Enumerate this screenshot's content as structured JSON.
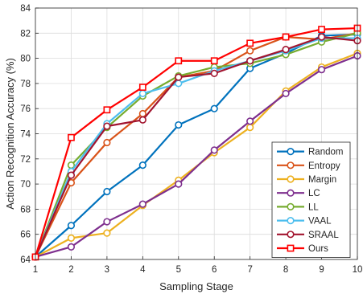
{
  "chart_data": {
    "type": "line",
    "title": "",
    "xlabel": "Sampling Stage",
    "ylabel": "Action Recognition Accuracy (%)",
    "x": [
      1,
      2,
      3,
      4,
      5,
      6,
      7,
      8,
      9,
      10
    ],
    "xlim": [
      1,
      10
    ],
    "ylim": [
      64,
      84
    ],
    "xticks": [
      "1",
      "2",
      "3",
      "4",
      "5",
      "6",
      "7",
      "8",
      "9",
      "10"
    ],
    "yticks": [
      "64",
      "66",
      "68",
      "70",
      "72",
      "74",
      "76",
      "78",
      "80",
      "82",
      "84"
    ],
    "grid": true,
    "legend_position": "bottom-right",
    "series": [
      {
        "name": "Random",
        "color": "#0072BD",
        "marker": "circle",
        "values": [
          64.2,
          66.7,
          69.4,
          71.5,
          74.7,
          76.0,
          79.2,
          80.4,
          81.8,
          81.9
        ]
      },
      {
        "name": "Entropy",
        "color": "#D95319",
        "marker": "circle",
        "values": [
          64.2,
          70.1,
          73.3,
          75.6,
          78.5,
          79.0,
          80.6,
          81.7,
          81.5,
          82.0
        ]
      },
      {
        "name": "Margin",
        "color": "#EDB120",
        "marker": "circle",
        "values": [
          64.2,
          65.7,
          66.1,
          68.3,
          70.3,
          72.5,
          74.5,
          77.4,
          79.3,
          80.4
        ]
      },
      {
        "name": "LC",
        "color": "#7E2F8E",
        "marker": "circle",
        "values": [
          64.2,
          65.0,
          67.0,
          68.4,
          70.0,
          72.7,
          75.0,
          77.2,
          79.1,
          80.2
        ]
      },
      {
        "name": "LL",
        "color": "#77AC30",
        "marker": "circle",
        "values": [
          64.2,
          71.5,
          74.5,
          77.0,
          78.6,
          79.3,
          79.6,
          80.3,
          81.3,
          82.0
        ]
      },
      {
        "name": "VAAL",
        "color": "#4DBEEE",
        "marker": "circle",
        "values": [
          64.2,
          71.0,
          74.8,
          77.2,
          78.0,
          79.0,
          79.8,
          80.6,
          81.6,
          81.6
        ]
      },
      {
        "name": "SRAAL",
        "color": "#A2142F",
        "marker": "circle",
        "values": [
          64.2,
          70.7,
          74.6,
          75.1,
          78.5,
          78.8,
          79.8,
          80.7,
          81.7,
          81.4
        ]
      },
      {
        "name": "Ours",
        "color": "#FF0000",
        "marker": "square",
        "values": [
          64.2,
          73.7,
          75.9,
          77.7,
          79.8,
          79.8,
          81.2,
          81.7,
          82.3,
          82.4
        ]
      }
    ]
  }
}
